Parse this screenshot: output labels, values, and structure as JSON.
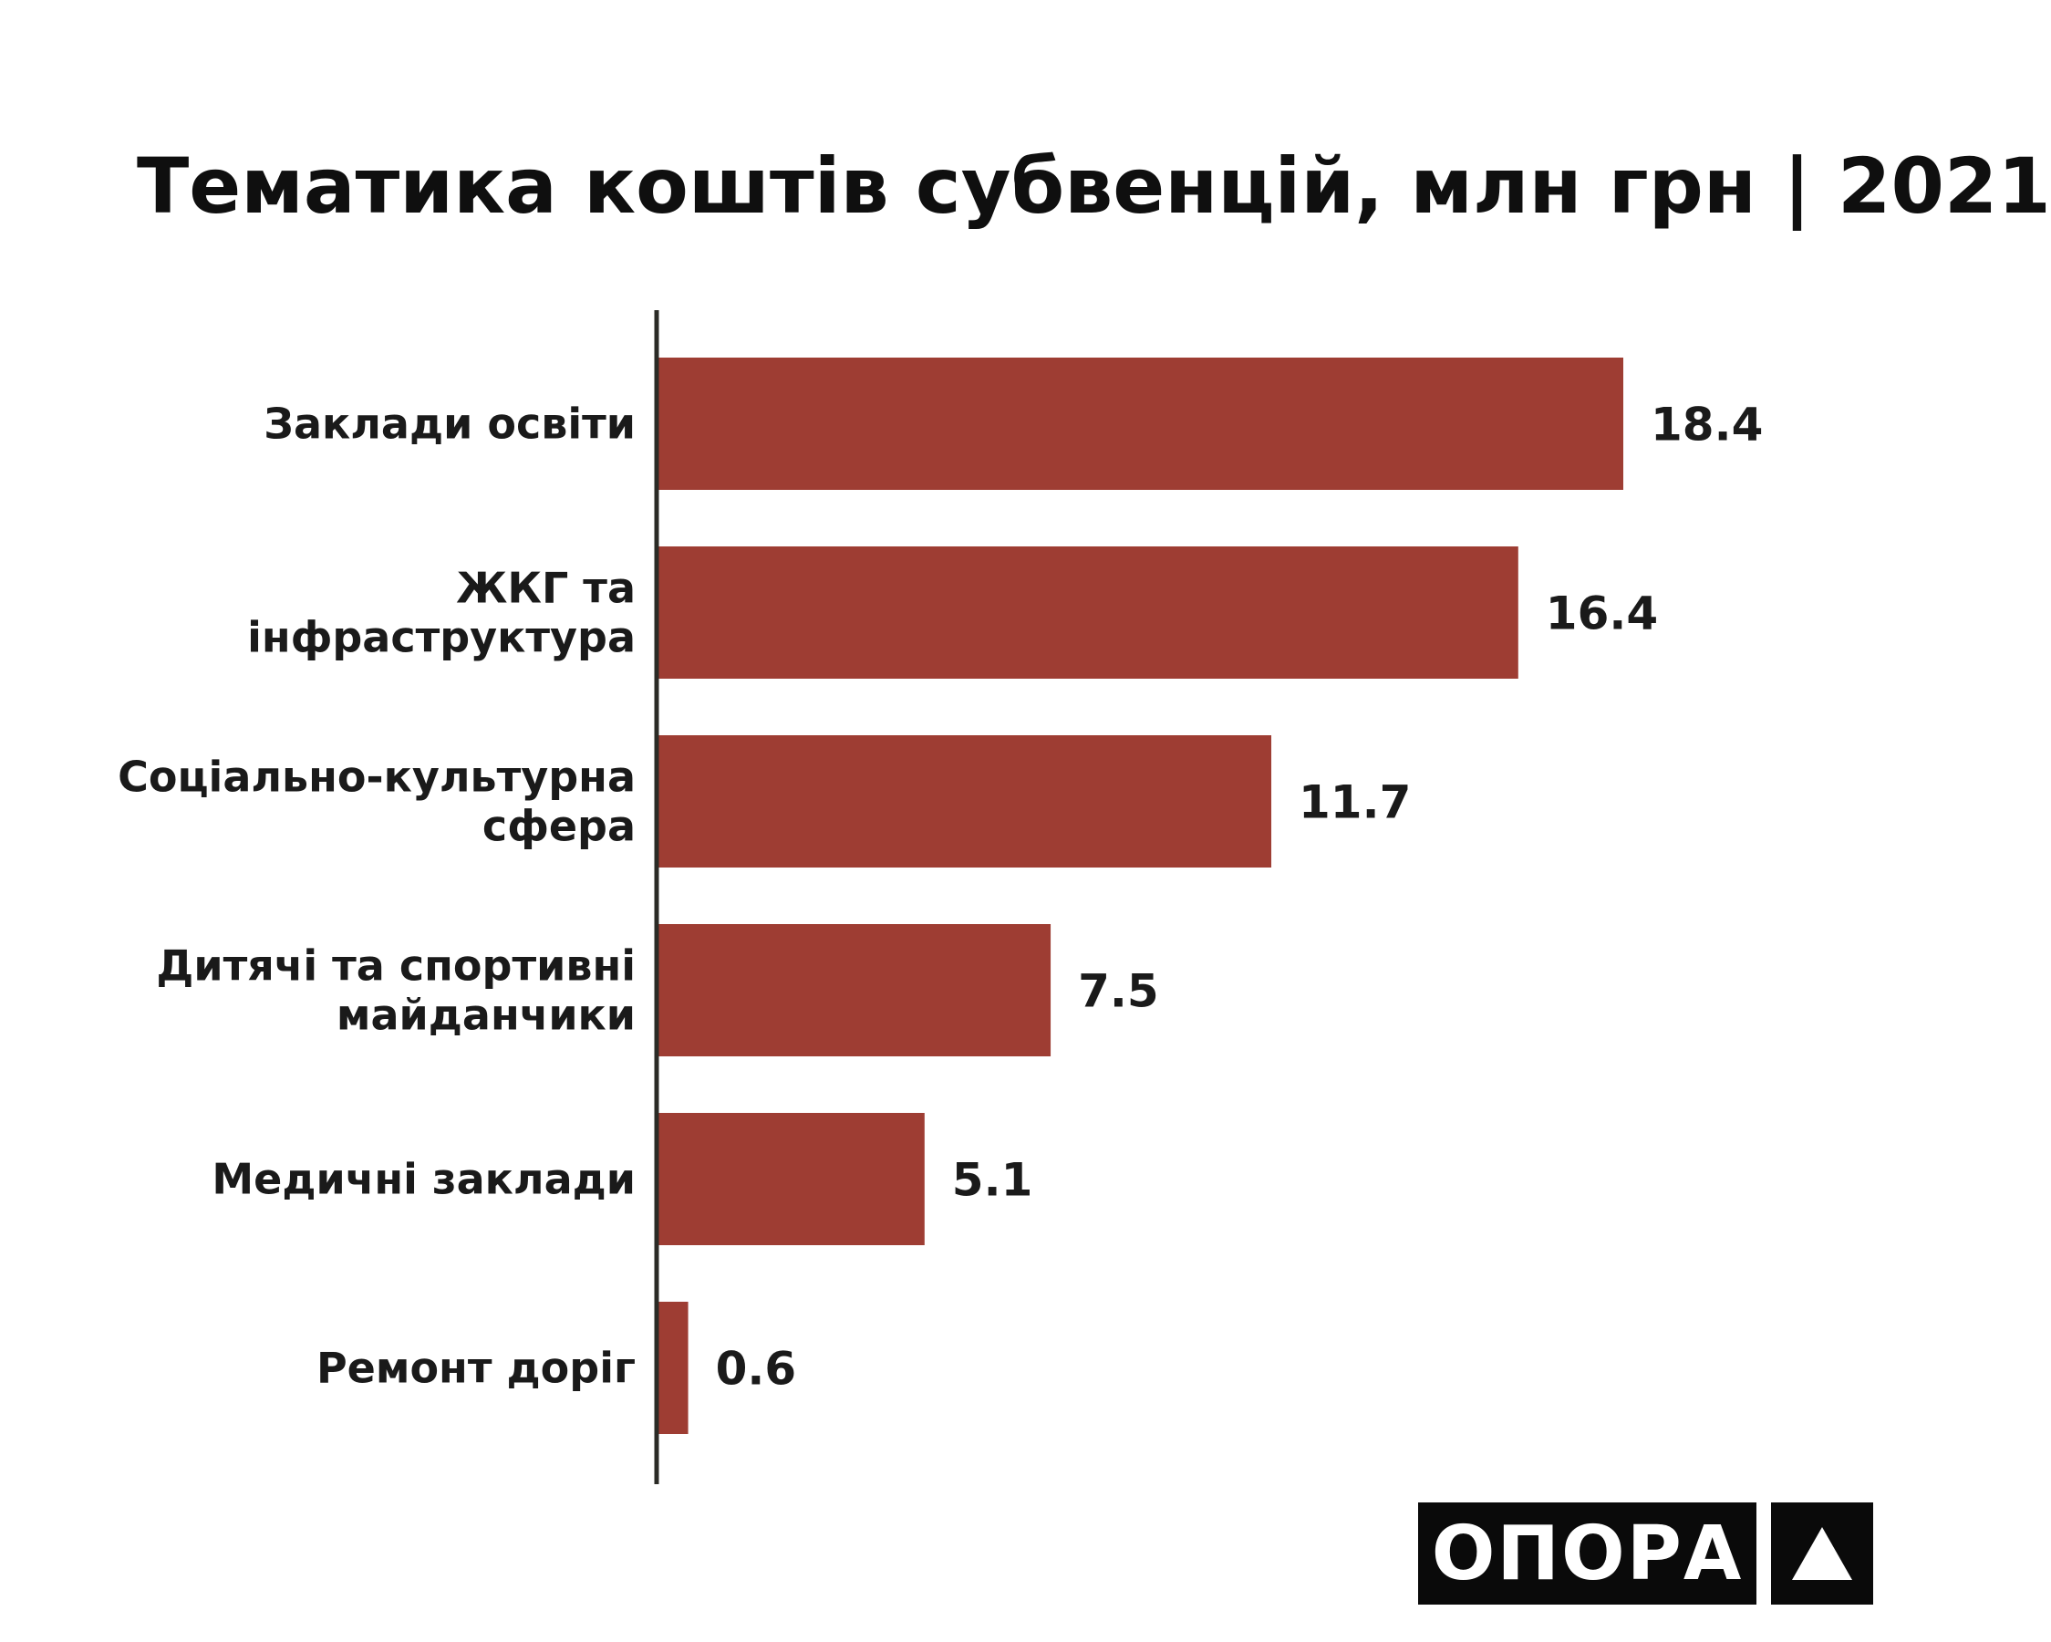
{
  "chart_data": {
    "type": "bar",
    "orientation": "horizontal",
    "title": "Тематика коштів субвенцій, млн грн | 2021",
    "categories": [
      [
        "Заклади освіти"
      ],
      [
        "ЖКГ та",
        "інфраструктура"
      ],
      [
        "Соціально-культурна",
        "сфера"
      ],
      [
        "Дитячі та спортивні",
        "майданчики"
      ],
      [
        "Медичні заклади"
      ],
      [
        "Ремонт доріг"
      ]
    ],
    "values": [
      18.4,
      16.4,
      11.7,
      7.5,
      5.1,
      0.6
    ],
    "value_labels": [
      "18.4",
      "16.4",
      "11.7",
      "7.5",
      "5.1",
      "0.6"
    ],
    "xlim": [
      0,
      18.4
    ],
    "grid": false,
    "bar_color": "#9e3d33",
    "axis_color": "#2b2b26"
  },
  "logo": {
    "text": "ОПОРА",
    "icon": "triangle-icon"
  }
}
